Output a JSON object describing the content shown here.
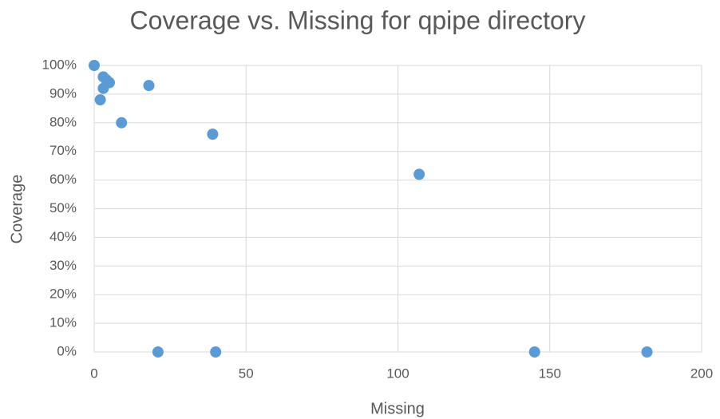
{
  "chart_data": {
    "type": "scatter",
    "title": "Coverage vs. Missing for qpipe directory",
    "x_label": "Missing",
    "y_label": "Coverage",
    "series": [
      {
        "name": "Coverage",
        "color": "#5b9bd5",
        "x": [
          0,
          3,
          4,
          5,
          3,
          2,
          9,
          18,
          39,
          107,
          21,
          40,
          145,
          182
        ],
        "values": [
          100,
          96,
          95,
          94,
          92,
          88,
          80,
          93,
          76,
          62,
          0,
          0,
          0,
          0
        ]
      }
    ],
    "xlim": [
      0,
      200
    ],
    "xticks": [
      0,
      50,
      100,
      150,
      200
    ],
    "ylim": [
      0,
      100
    ],
    "yticks": [
      {
        "value": 0,
        "label": "0%"
      },
      {
        "value": 10,
        "label": "10%"
      },
      {
        "value": 20,
        "label": "20%"
      },
      {
        "value": 30,
        "label": "30%"
      },
      {
        "value": 40,
        "label": "40%"
      },
      {
        "value": 50,
        "label": "50%"
      },
      {
        "value": 60,
        "label": "60%"
      },
      {
        "value": 70,
        "label": "70%"
      },
      {
        "value": 80,
        "label": "80%"
      },
      {
        "value": 90,
        "label": "90%"
      },
      {
        "value": 100,
        "label": "100%"
      }
    ],
    "grid": true
  }
}
